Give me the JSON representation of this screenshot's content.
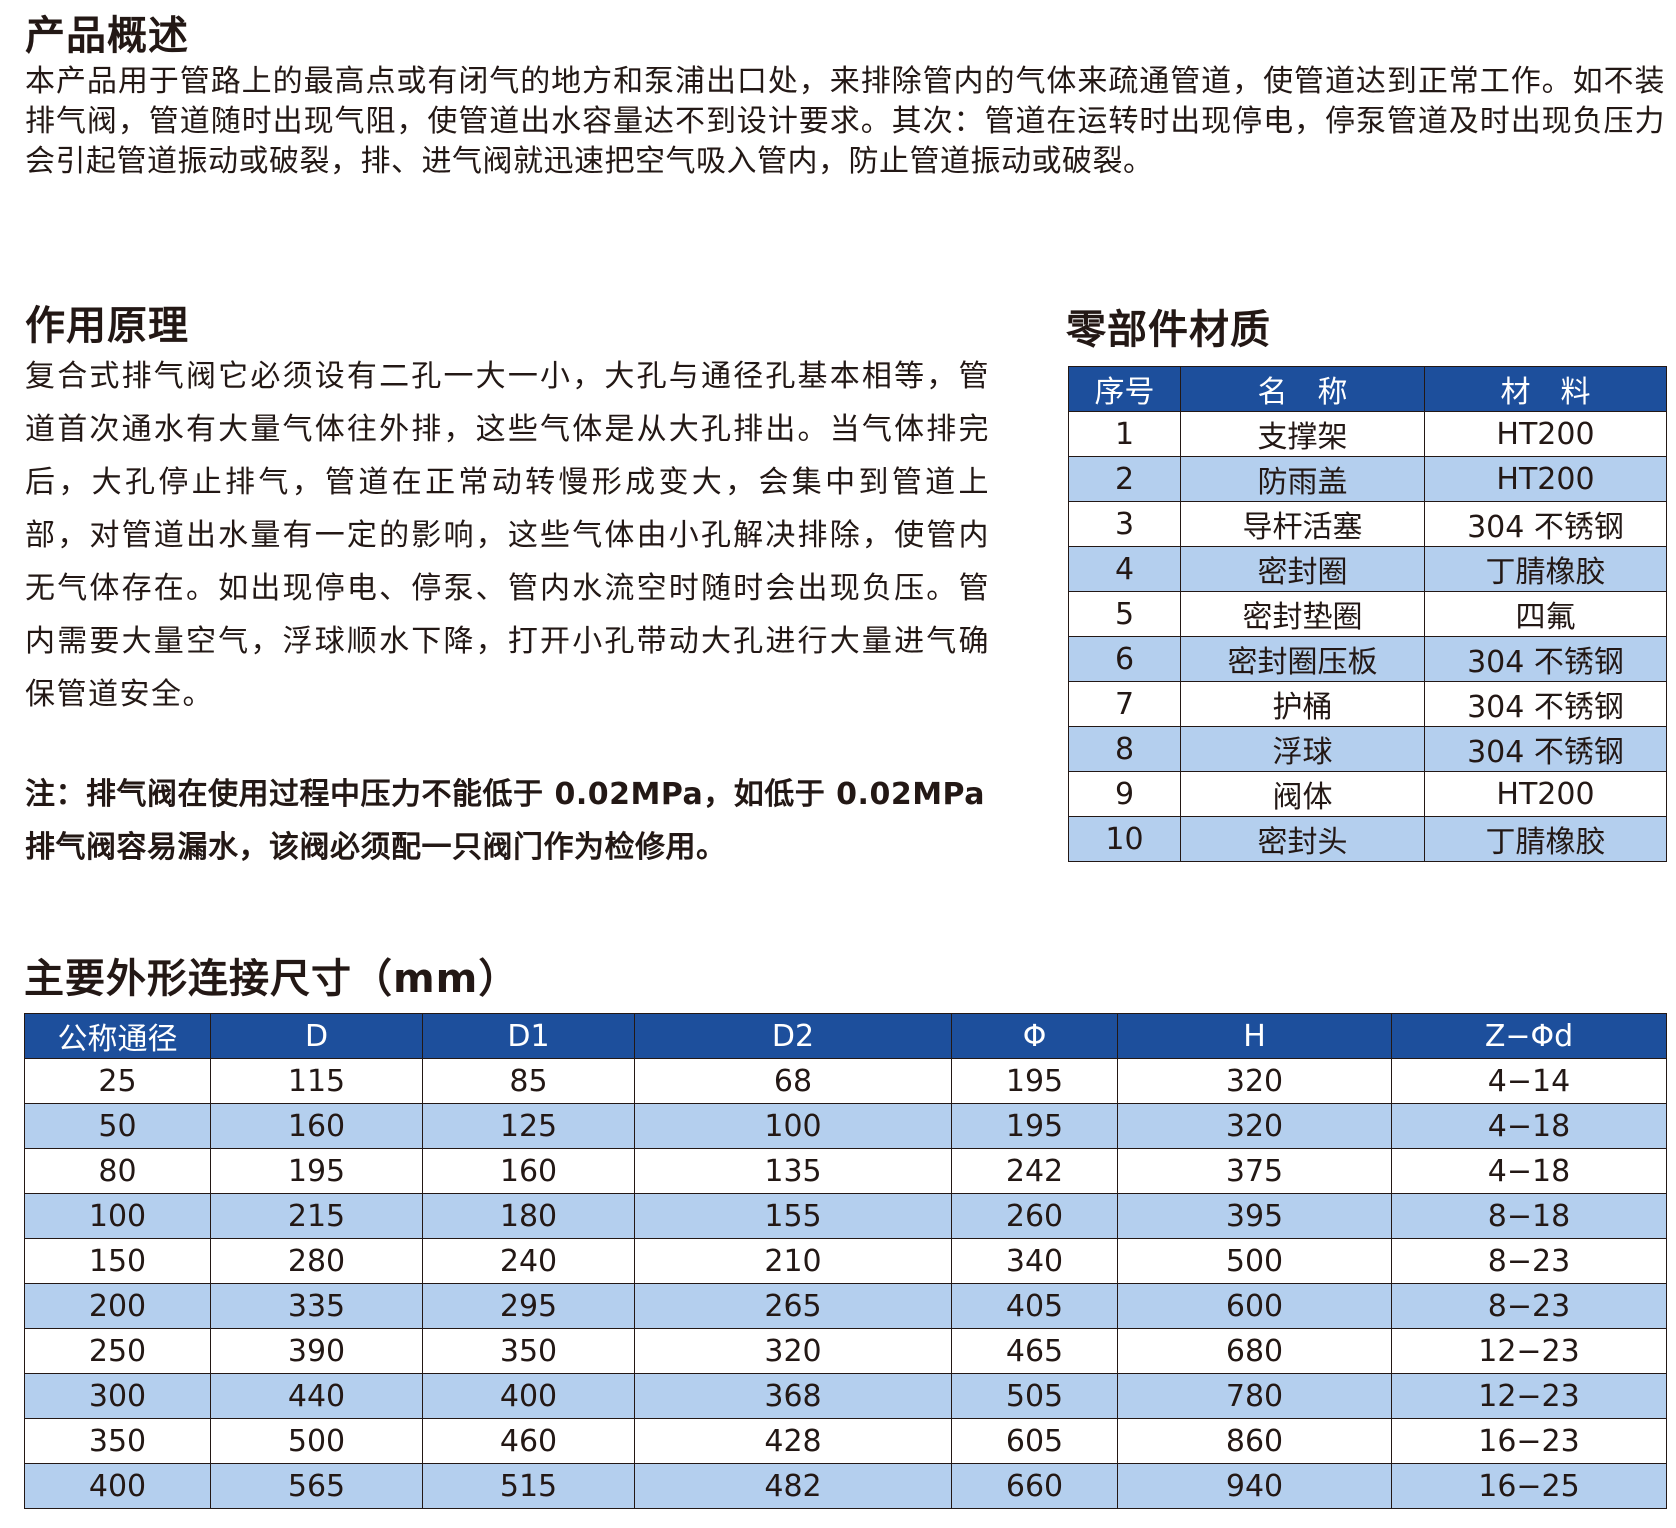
{
  "overview": {
    "title": "产品概述",
    "text": "本产品用于管路上的最高点或有闭气的地方和泵浦出口处，来排除管内的气体来疏通管道，使管道达到正常工作。如不装排气阀，管道随时出现气阻，使管道出水容量达不到设计要求。其次：管道在运转时出现停电，停泵管道及时出现负压力会引起管道振动或破裂，排、进气阀就迅速把空气吸入管内，防止管道振动或破裂。"
  },
  "principle": {
    "title": "作用原理",
    "text": "复合式排气阀它必须设有二孔一大一小，大孔与通径孔基本相等，管道首次通水有大量气体往外排，这些气体是从大孔排出。当气体排完后，大孔停止排气，管道在正常动转慢形成变大，会集中到管道上部，对管道出水量有一定的影响，这些气体由小孔解决排除，使管内无气体存在。如出现停电、停泵、管内水流空时随时会出现负压。管内需要大量空气，浮球顺水下降，打开小孔带动大孔进行大量进气确保管道安全。",
    "note": "注：排气阀在使用过程中压力不能低于 0.02MPa，如低于 0.02MPa 排气阀容易漏水，该阀必须配一只阀门作为检修用。"
  },
  "materials": {
    "title": "零部件材质",
    "headers": [
      "序号",
      "名　称",
      "材　料"
    ],
    "rows": [
      [
        "1",
        "支撑架",
        "HT200"
      ],
      [
        "2",
        "防雨盖",
        "HT200"
      ],
      [
        "3",
        "导杆活塞",
        "304 不锈钢"
      ],
      [
        "4",
        "密封圈",
        "丁腈橡胶"
      ],
      [
        "5",
        "密封垫圈",
        "四氟"
      ],
      [
        "6",
        "密封圈压板",
        "304 不锈钢"
      ],
      [
        "7",
        "护桶",
        "304 不锈钢"
      ],
      [
        "8",
        "浮球",
        "304 不锈钢"
      ],
      [
        "9",
        "阀体",
        "HT200"
      ],
      [
        "10",
        "密封头",
        "丁腈橡胶"
      ]
    ]
  },
  "dimensions": {
    "title": "主要外形连接尺寸（mm）",
    "headers": [
      "公称通径",
      "D",
      "D1",
      "D2",
      "Φ",
      "H",
      "Z−Φd"
    ],
    "rows": [
      [
        "25",
        "115",
        "85",
        "68",
        "195",
        "320",
        "4−14"
      ],
      [
        "50",
        "160",
        "125",
        "100",
        "195",
        "320",
        "4−18"
      ],
      [
        "80",
        "195",
        "160",
        "135",
        "242",
        "375",
        "4−18"
      ],
      [
        "100",
        "215",
        "180",
        "155",
        "260",
        "395",
        "8−18"
      ],
      [
        "150",
        "280",
        "240",
        "210",
        "340",
        "500",
        "8−23"
      ],
      [
        "200",
        "335",
        "295",
        "265",
        "405",
        "600",
        "8−23"
      ],
      [
        "250",
        "390",
        "350",
        "320",
        "465",
        "680",
        "12−23"
      ],
      [
        "300",
        "440",
        "400",
        "368",
        "505",
        "780",
        "12−23"
      ],
      [
        "350",
        "500",
        "460",
        "428",
        "605",
        "860",
        "16−23"
      ],
      [
        "400",
        "565",
        "515",
        "482",
        "660",
        "940",
        "16−25"
      ]
    ]
  }
}
